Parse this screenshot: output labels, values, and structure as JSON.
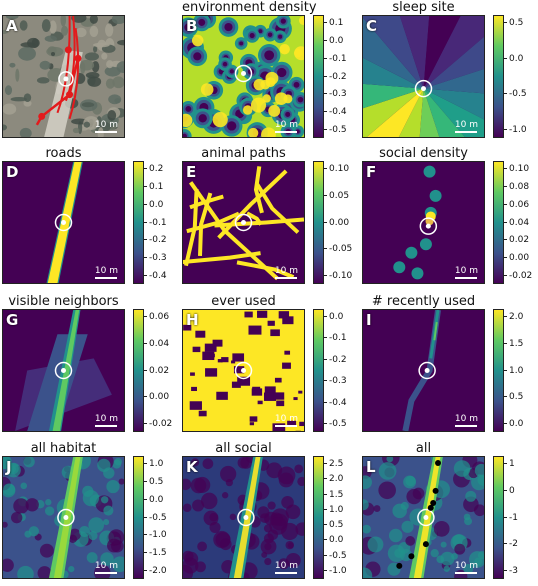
{
  "figure": {
    "scale_label": "10 m",
    "panels": [
      {
        "letter": "A",
        "title": "",
        "type": "photo",
        "ticks": []
      },
      {
        "letter": "B",
        "title": "environment density",
        "type": "blobs",
        "ticks": [
          "0.1",
          "0.0",
          "-0.1",
          "-0.2",
          "-0.3",
          "-0.4",
          "-0.5"
        ]
      },
      {
        "letter": "C",
        "title": "sleep site",
        "type": "radial",
        "ticks": [
          "0.5",
          "0.0",
          "-0.5",
          "-1.0"
        ]
      },
      {
        "letter": "D",
        "title": "roads",
        "type": "road",
        "ticks": [
          "0.2",
          "0.1",
          "0.0",
          "-0.1",
          "-0.2",
          "-0.3",
          "-0.4"
        ]
      },
      {
        "letter": "E",
        "title": "animal paths",
        "type": "paths",
        "ticks": [
          "0.10",
          "0.05",
          "0.00",
          "-0.05",
          "-0.10"
        ]
      },
      {
        "letter": "F",
        "title": "social density",
        "type": "social",
        "ticks": [
          "0.10",
          "0.08",
          "0.06",
          "0.04",
          "0.02",
          "0.00",
          "-0.02"
        ]
      },
      {
        "letter": "G",
        "title": "visible neighbors",
        "type": "visible",
        "ticks": [
          "0.06",
          "0.04",
          "0.02",
          "0.00",
          "-0.02"
        ]
      },
      {
        "letter": "H",
        "title": "ever used",
        "type": "everused",
        "ticks": [
          "0.0",
          "-0.1",
          "-0.2",
          "-0.3",
          "-0.4",
          "-0.5"
        ]
      },
      {
        "letter": "I",
        "title": "# recently used",
        "type": "recent",
        "ticks": [
          "2.0",
          "1.5",
          "1.0",
          "0.5",
          "0.0"
        ]
      },
      {
        "letter": "J",
        "title": "all habitat",
        "type": "habitat",
        "ticks": [
          "1.0",
          "0.5",
          "0.0",
          "-0.5",
          "-1.0",
          "-1.5",
          "-2.0"
        ]
      },
      {
        "letter": "K",
        "title": "all social",
        "type": "allsocial",
        "ticks": [
          "2.5",
          "2.0",
          "1.5",
          "1.0",
          "0.5",
          "0.0",
          "-0.5",
          "-1.0"
        ]
      },
      {
        "letter": "L",
        "title": "all",
        "type": "all",
        "ticks": [
          "1",
          "0",
          "-1",
          "-2",
          "-3"
        ]
      }
    ]
  }
}
